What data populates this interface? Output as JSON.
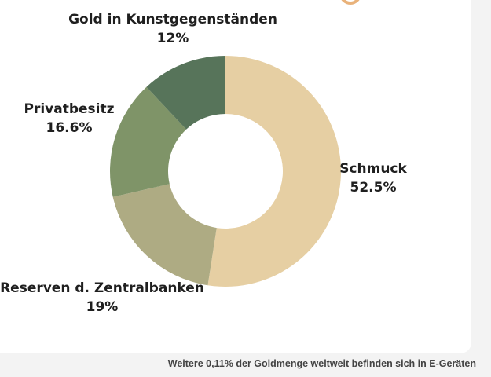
{
  "chart_data": {
    "type": "donut",
    "categories": [
      "Schmuck",
      "Reserven d. Zentralbanken",
      "Privatbesitz",
      "Gold in Kunstgegenständen"
    ],
    "values": [
      52.5,
      19,
      16.6,
      12
    ],
    "value_labels": [
      "52.5%",
      "19%",
      "16.6%",
      "12%"
    ],
    "colors": [
      "#e6cfa3",
      "#aeab83",
      "#7f9468",
      "#57745a"
    ],
    "footnote": "Weitere 0,11% der Goldmenge weltweit befinden sich in E-Geräten"
  }
}
